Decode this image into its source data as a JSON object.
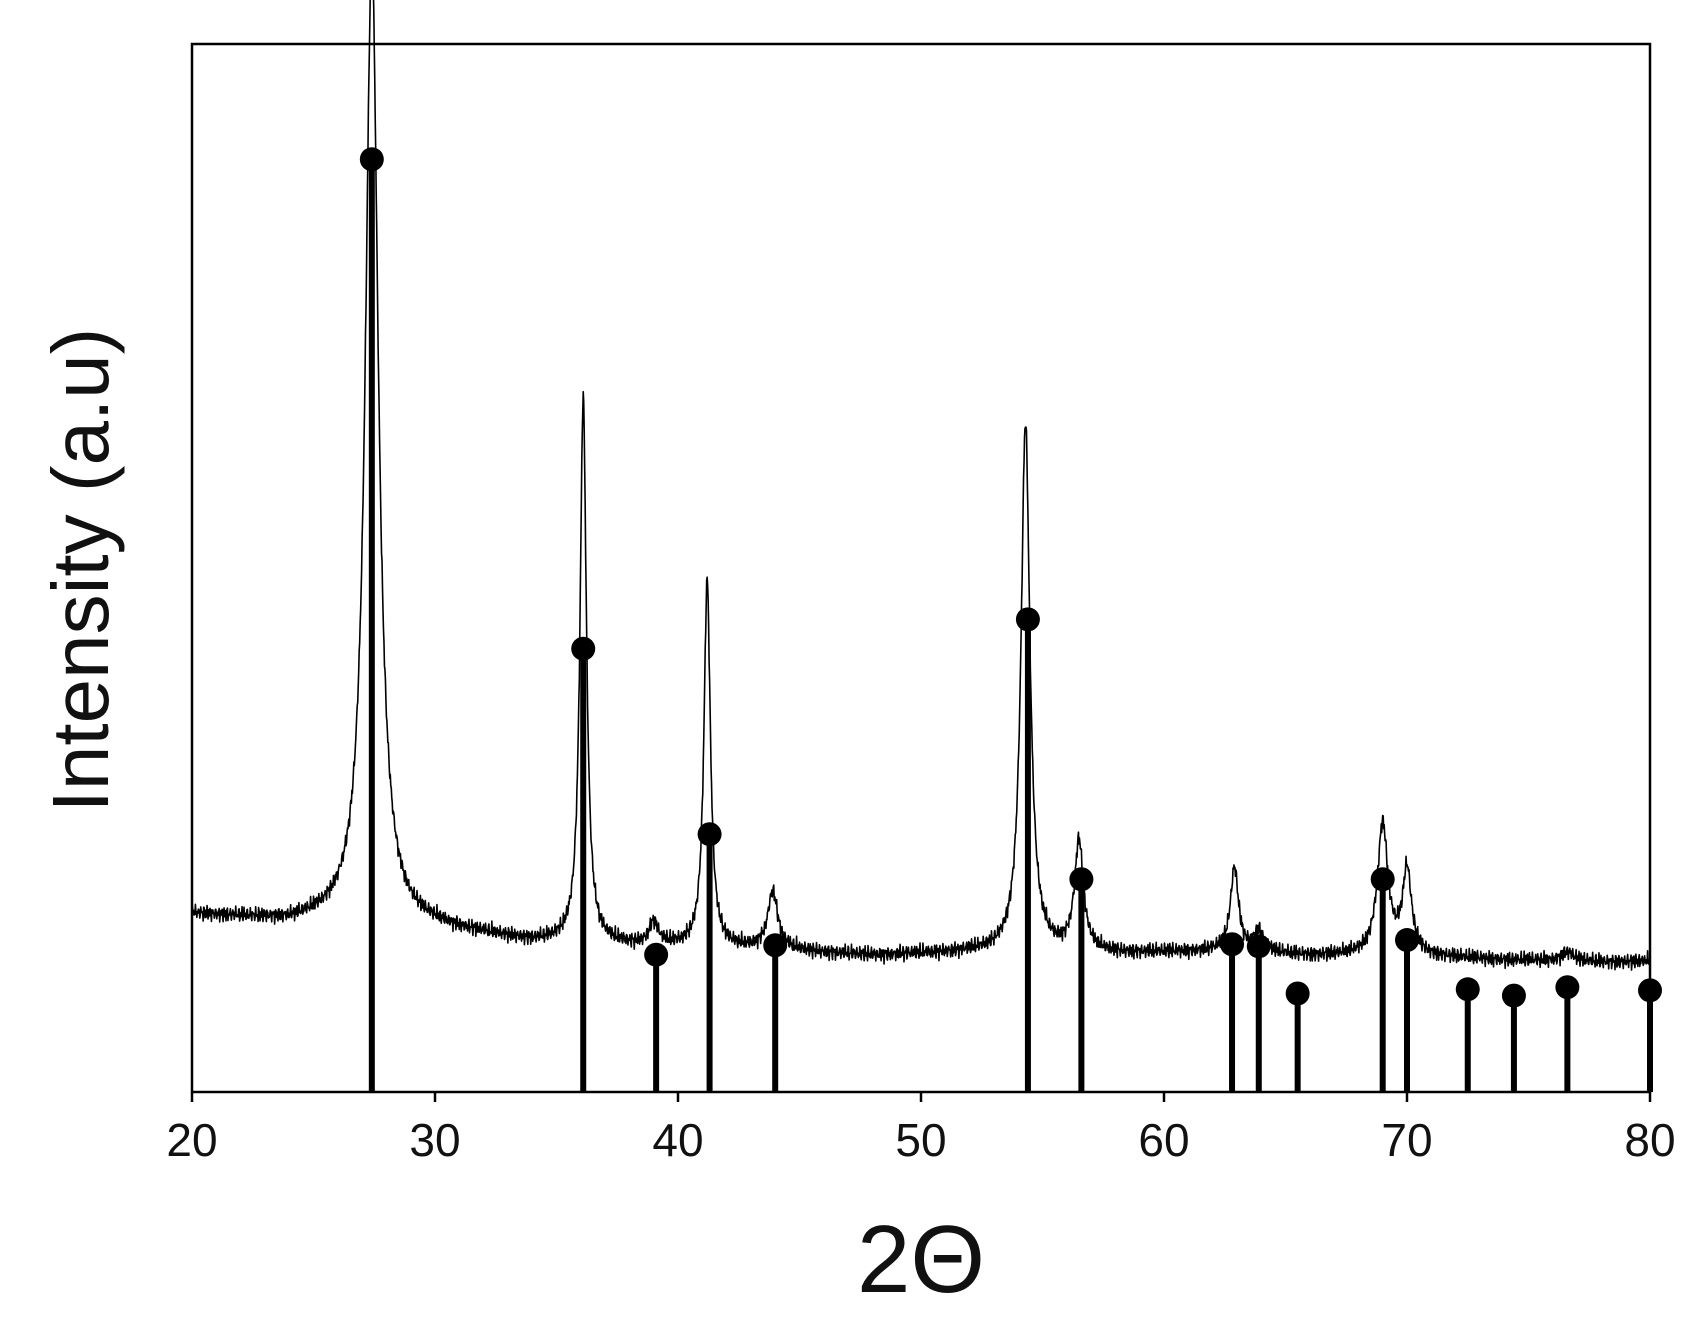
{
  "chart_data": {
    "type": "line",
    "title": "",
    "xlabel": "2Θ",
    "ylabel": "Intensity (a.u)",
    "xlim": [
      20,
      80
    ],
    "ylim": [
      0,
      100
    ],
    "grid": false,
    "legend": "none",
    "x_ticks": [
      "20",
      "30",
      "40",
      "50",
      "60",
      "70",
      "80"
    ],
    "y_ticks_shown": false,
    "colors": {
      "line": "#000000",
      "marker": "#000000",
      "frame": "#000000"
    },
    "pattern": {
      "name": "",
      "baseline_points": [
        [
          20,
          17.0
        ],
        [
          24,
          16.2
        ],
        [
          26,
          16.4
        ],
        [
          30,
          15.6
        ],
        [
          34,
          14.3
        ],
        [
          38,
          13.9
        ],
        [
          40,
          13.8
        ],
        [
          44,
          13.5
        ],
        [
          48,
          13.0
        ],
        [
          52,
          13.3
        ],
        [
          58,
          13.2
        ],
        [
          62,
          13.4
        ],
        [
          66,
          13.0
        ],
        [
          70,
          13.0
        ],
        [
          74,
          12.6
        ],
        [
          78,
          12.4
        ],
        [
          80,
          12.5
        ]
      ],
      "peaks": [
        {
          "x": 27.4,
          "height": 92,
          "width": 0.32
        },
        {
          "x": 36.1,
          "height": 52,
          "width": 0.16
        },
        {
          "x": 39.0,
          "height": 2.2,
          "width": 0.22
        },
        {
          "x": 41.2,
          "height": 35,
          "width": 0.16
        },
        {
          "x": 43.9,
          "height": 5.5,
          "width": 0.25
        },
        {
          "x": 54.3,
          "height": 50.5,
          "width": 0.22
        },
        {
          "x": 56.5,
          "height": 10.5,
          "width": 0.22
        },
        {
          "x": 62.9,
          "height": 8.0,
          "width": 0.2
        },
        {
          "x": 63.9,
          "height": 2.0,
          "width": 0.25
        },
        {
          "x": 69.0,
          "height": 12.5,
          "width": 0.26
        },
        {
          "x": 70.0,
          "height": 8.0,
          "width": 0.22
        },
        {
          "x": 76.6,
          "height": 0.9,
          "width": 0.3
        }
      ]
    },
    "reference_lines": {
      "name": "",
      "x": [
        27.4,
        36.1,
        39.1,
        41.3,
        44.0,
        54.4,
        56.6,
        62.8,
        63.9,
        65.5,
        69.0,
        70.0,
        72.5,
        74.4,
        76.6,
        80.0
      ],
      "y": [
        89.0,
        42.3,
        13.1,
        24.6,
        14.0,
        45.1,
        20.3,
        14.1,
        13.9,
        9.4,
        20.3,
        14.5,
        9.8,
        9.2,
        10.0,
        9.7
      ]
    }
  }
}
